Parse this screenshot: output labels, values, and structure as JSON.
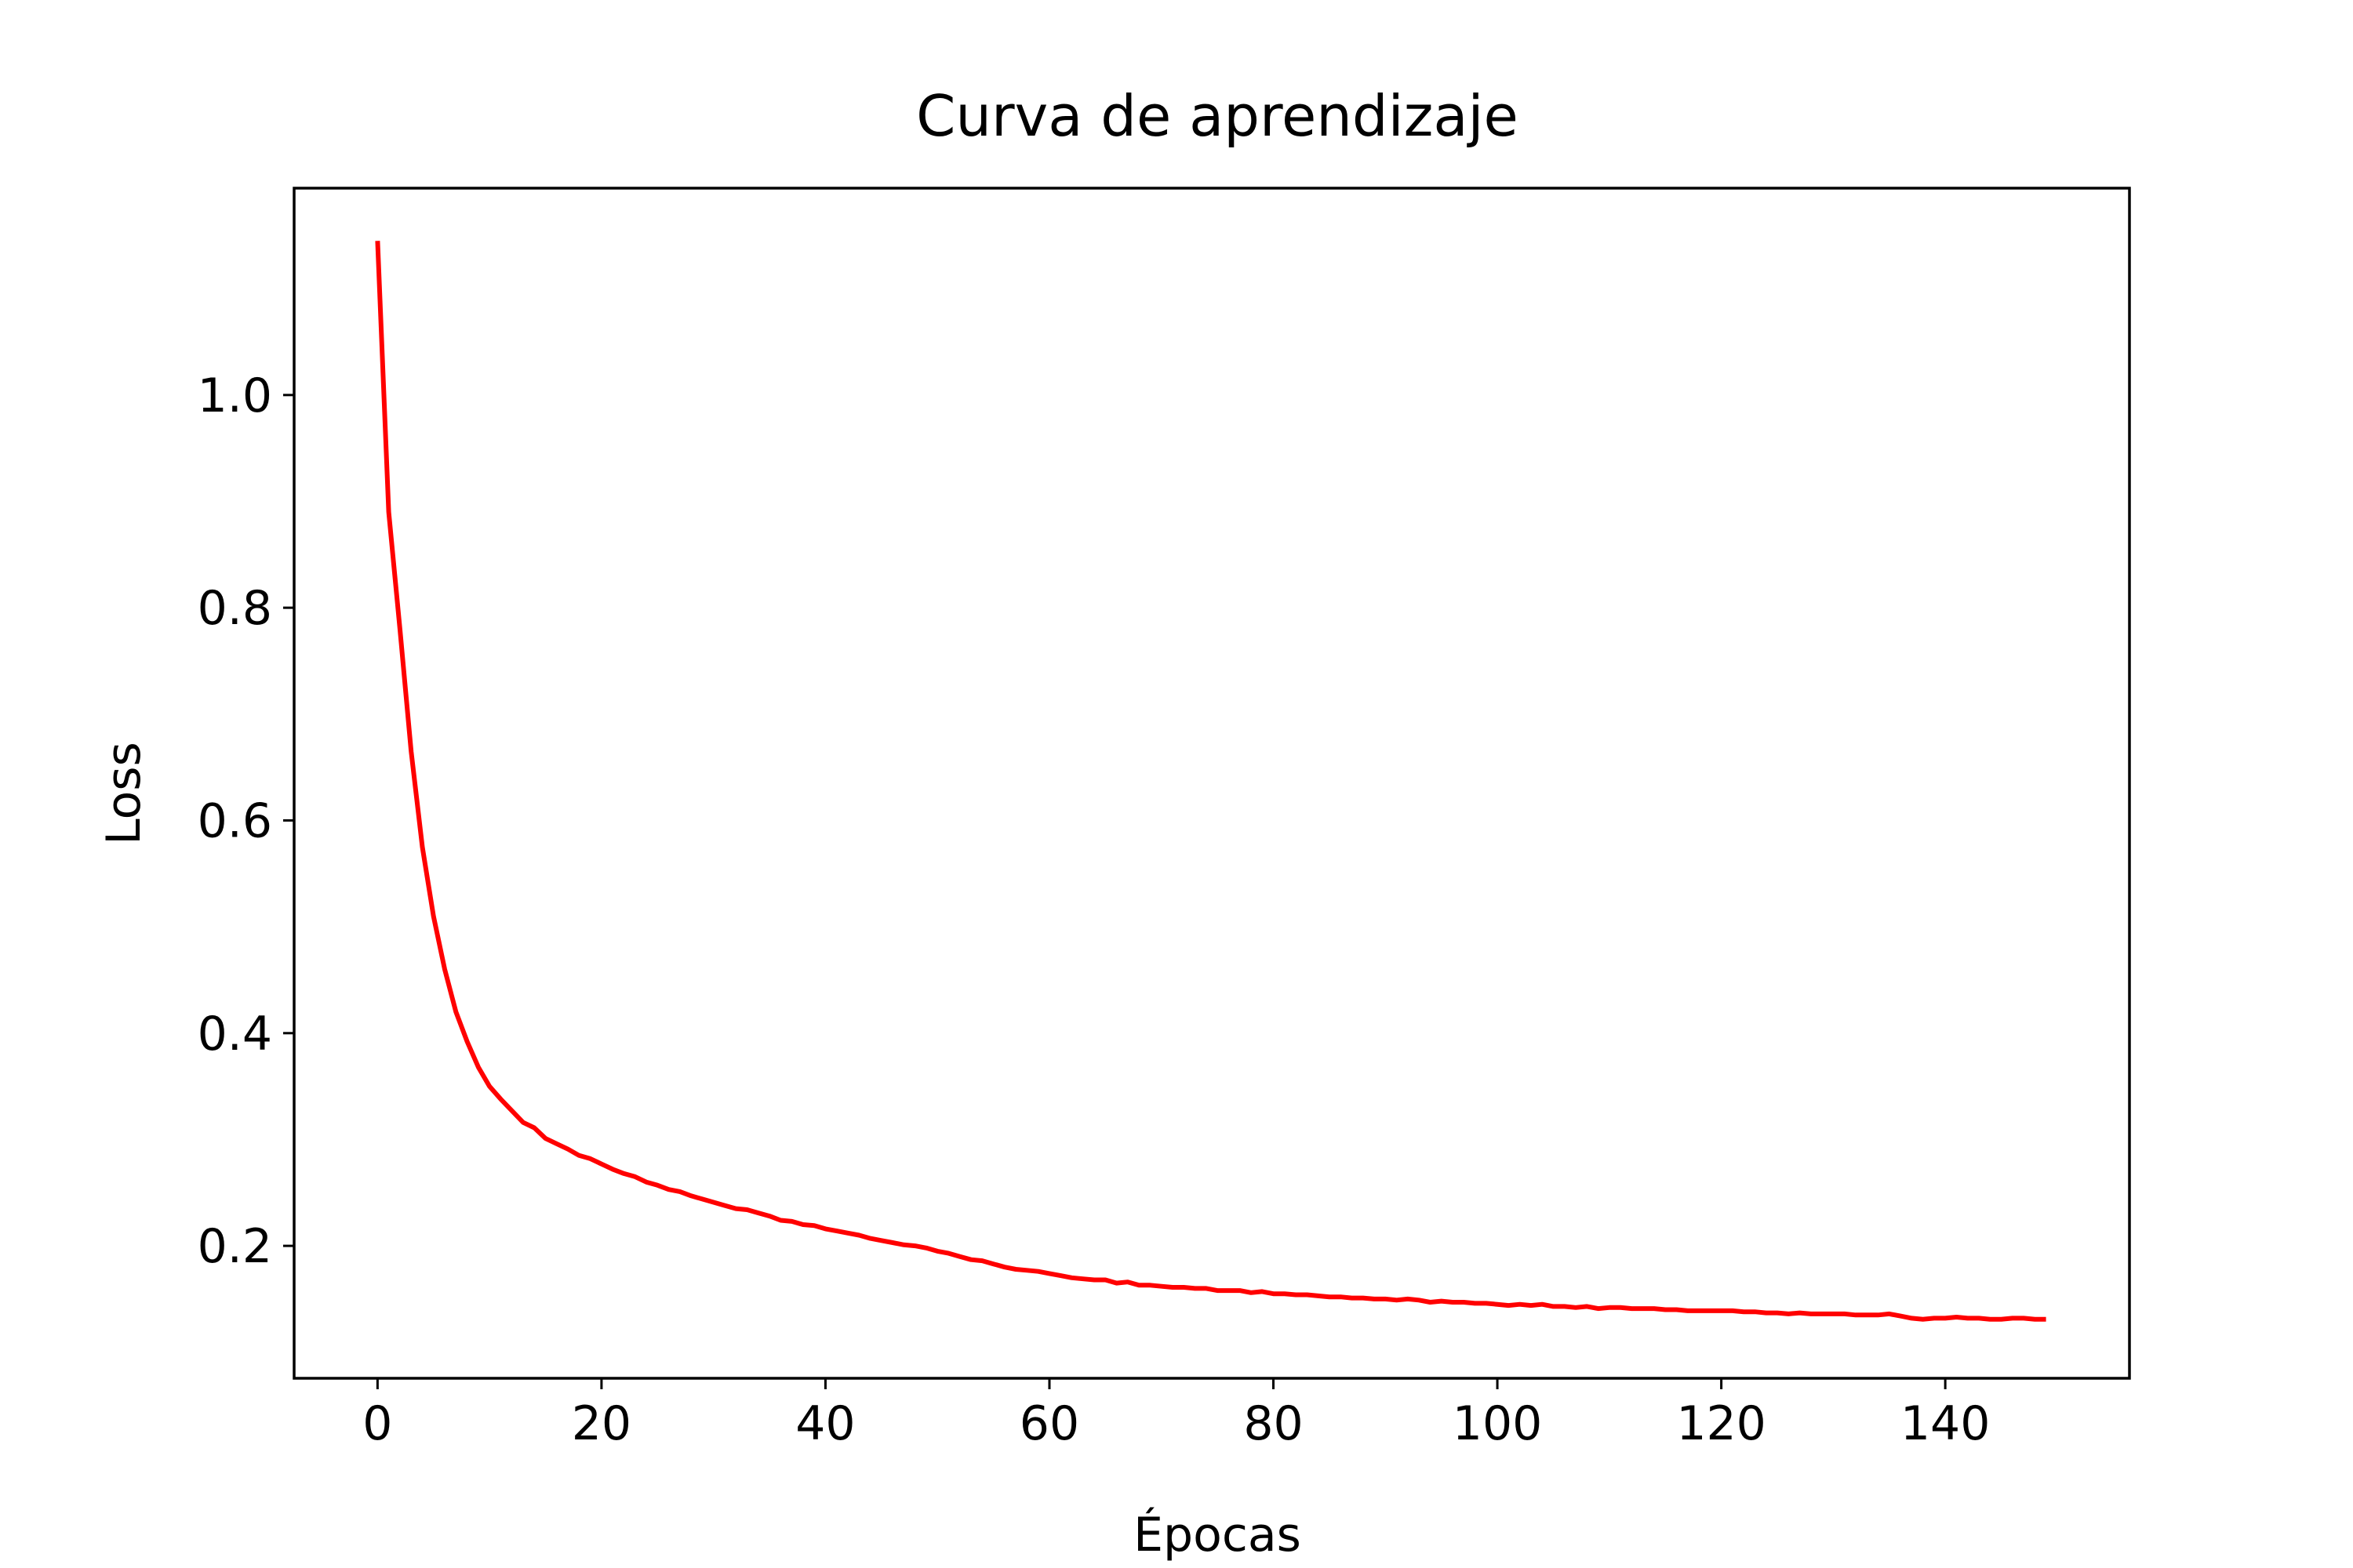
{
  "chart_data": {
    "type": "line",
    "title": "Curva de aprendizaje",
    "xlabel": "Épocas",
    "ylabel": "Loss",
    "xlim": [
      -7.45,
      156.45
    ],
    "ylim": [
      0.0755,
      1.1945
    ],
    "xticks": [
      0,
      20,
      40,
      60,
      80,
      100,
      120,
      140
    ],
    "xtick_labels": [
      "0",
      "20",
      "40",
      "60",
      "80",
      "100",
      "120",
      "140"
    ],
    "yticks": [
      0.2,
      0.4,
      0.6,
      0.8,
      1.0
    ],
    "ytick_labels": [
      "0.2",
      "0.4",
      "0.6",
      "0.8",
      "1.0"
    ],
    "grid": false,
    "legend": "none",
    "series": [
      {
        "color": "#ff0000",
        "x": [
          0,
          1,
          2,
          3,
          4,
          5,
          6,
          7,
          8,
          9,
          10,
          11,
          12,
          13,
          14,
          15,
          16,
          17,
          18,
          19,
          20,
          21,
          22,
          23,
          24,
          25,
          26,
          27,
          28,
          29,
          30,
          31,
          32,
          33,
          34,
          35,
          36,
          37,
          38,
          39,
          40,
          41,
          42,
          43,
          44,
          45,
          46,
          47,
          48,
          49,
          50,
          51,
          52,
          53,
          54,
          55,
          56,
          57,
          58,
          59,
          60,
          61,
          62,
          63,
          64,
          65,
          66,
          67,
          68,
          69,
          70,
          71,
          72,
          73,
          74,
          75,
          76,
          77,
          78,
          79,
          80,
          81,
          82,
          83,
          84,
          85,
          86,
          87,
          88,
          89,
          90,
          91,
          92,
          93,
          94,
          95,
          96,
          97,
          98,
          99,
          100,
          101,
          102,
          103,
          104,
          105,
          106,
          107,
          108,
          109,
          110,
          111,
          112,
          113,
          114,
          115,
          116,
          117,
          118,
          119,
          120,
          121,
          122,
          123,
          124,
          125,
          126,
          127,
          128,
          129,
          130,
          131,
          132,
          133,
          134,
          135,
          136,
          137,
          138,
          139,
          140,
          141,
          142,
          143,
          144,
          145,
          146,
          147,
          148,
          149
        ],
        "y": [
          1.145,
          0.89,
          0.78,
          0.665,
          0.575,
          0.51,
          0.46,
          0.42,
          0.392,
          0.368,
          0.35,
          0.338,
          0.327,
          0.316,
          0.311,
          0.301,
          0.296,
          0.291,
          0.285,
          0.282,
          0.277,
          0.272,
          0.268,
          0.265,
          0.26,
          0.257,
          0.253,
          0.251,
          0.247,
          0.244,
          0.241,
          0.238,
          0.235,
          0.234,
          0.231,
          0.228,
          0.224,
          0.223,
          0.22,
          0.219,
          0.216,
          0.214,
          0.212,
          0.21,
          0.207,
          0.205,
          0.203,
          0.201,
          0.2,
          0.198,
          0.195,
          0.193,
          0.19,
          0.187,
          0.186,
          0.183,
          0.18,
          0.178,
          0.177,
          0.176,
          0.174,
          0.172,
          0.17,
          0.169,
          0.168,
          0.168,
          0.165,
          0.166,
          0.163,
          0.163,
          0.162,
          0.161,
          0.161,
          0.16,
          0.16,
          0.158,
          0.158,
          0.158,
          0.156,
          0.157,
          0.155,
          0.155,
          0.154,
          0.154,
          0.153,
          0.152,
          0.152,
          0.151,
          0.151,
          0.15,
          0.15,
          0.149,
          0.15,
          0.149,
          0.147,
          0.148,
          0.147,
          0.147,
          0.146,
          0.146,
          0.145,
          0.144,
          0.145,
          0.144,
          0.145,
          0.143,
          0.143,
          0.142,
          0.143,
          0.141,
          0.142,
          0.142,
          0.141,
          0.141,
          0.141,
          0.14,
          0.14,
          0.139,
          0.139,
          0.139,
          0.139,
          0.139,
          0.138,
          0.138,
          0.137,
          0.137,
          0.136,
          0.137,
          0.136,
          0.136,
          0.136,
          0.136,
          0.135,
          0.135,
          0.135,
          0.136,
          0.134,
          0.132,
          0.131,
          0.132,
          0.132,
          0.133,
          0.132,
          0.132,
          0.131,
          0.131,
          0.132,
          0.132,
          0.131,
          0.131
        ]
      }
    ]
  }
}
